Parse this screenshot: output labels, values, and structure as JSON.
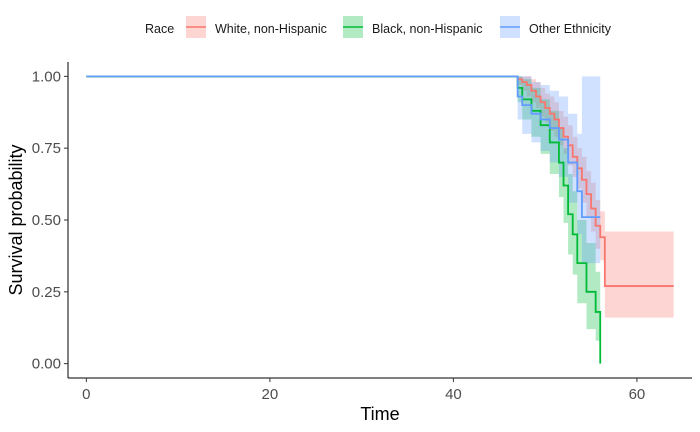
{
  "chart_data": {
    "type": "line",
    "subtype": "kaplan-meier-step",
    "xlabel": "Time",
    "ylabel": "Survival probability",
    "xlim": [
      -2,
      66
    ],
    "ylim": [
      -0.05,
      1.05
    ],
    "xticks": [
      0,
      20,
      40,
      60
    ],
    "yticks": [
      0.0,
      0.25,
      0.5,
      0.75,
      1.0
    ],
    "xtick_labels": [
      "0",
      "20",
      "40",
      "60"
    ],
    "ytick_labels": [
      "0.00",
      "0.25",
      "0.50",
      "0.75",
      "1.00"
    ],
    "grid": false,
    "legend": {
      "title": "Race",
      "position": "top",
      "entries": [
        "White, non-Hispanic",
        "Black, non-Hispanic",
        "Other Ethnicity"
      ]
    },
    "series": [
      {
        "name": "White, non-Hispanic",
        "color": "#F8766D",
        "fill": "#F8766D",
        "x": [
          0,
          47,
          47.5,
          48,
          48.5,
          49,
          49.5,
          50,
          50.5,
          51,
          51.5,
          52,
          52.5,
          53,
          53.5,
          54,
          54.5,
          55,
          55.5,
          56,
          56.5,
          64
        ],
        "y": [
          1.0,
          0.99,
          0.98,
          0.97,
          0.95,
          0.93,
          0.91,
          0.89,
          0.87,
          0.85,
          0.82,
          0.79,
          0.76,
          0.72,
          0.68,
          0.64,
          0.59,
          0.54,
          0.48,
          0.44,
          0.27,
          0.27
        ],
        "lower": [
          1.0,
          0.97,
          0.95,
          0.93,
          0.91,
          0.89,
          0.86,
          0.84,
          0.81,
          0.79,
          0.76,
          0.73,
          0.69,
          0.65,
          0.61,
          0.56,
          0.51,
          0.46,
          0.4,
          0.36,
          0.16,
          0.16
        ],
        "upper": [
          1.0,
          1.0,
          1.0,
          1.0,
          0.99,
          0.98,
          0.96,
          0.94,
          0.93,
          0.91,
          0.88,
          0.86,
          0.83,
          0.79,
          0.75,
          0.72,
          0.67,
          0.63,
          0.57,
          0.53,
          0.46,
          0.46
        ]
      },
      {
        "name": "Black, non-Hispanic",
        "color": "#00BA38",
        "fill": "#00BA38",
        "x": [
          0,
          47,
          47.5,
          48.5,
          49.5,
          50.5,
          51.5,
          52,
          52.5,
          53,
          53.5,
          54.5,
          55.5,
          56
        ],
        "y": [
          1.0,
          0.96,
          0.92,
          0.88,
          0.83,
          0.77,
          0.7,
          0.62,
          0.52,
          0.45,
          0.35,
          0.25,
          0.18,
          0.0
        ],
        "lower": [
          1.0,
          0.91,
          0.85,
          0.79,
          0.73,
          0.66,
          0.58,
          0.49,
          0.38,
          0.31,
          0.21,
          0.12,
          0.08,
          0.0
        ],
        "upper": [
          1.0,
          1.0,
          0.99,
          0.96,
          0.92,
          0.88,
          0.82,
          0.75,
          0.66,
          0.6,
          0.5,
          0.42,
          0.32,
          0.25
        ]
      },
      {
        "name": "Other Ethnicity",
        "color": "#619CFF",
        "fill": "#619CFF",
        "x": [
          0,
          47,
          47.5,
          48.5,
          49.5,
          50.5,
          51.5,
          52.5,
          53.5,
          54,
          56
        ],
        "y": [
          1.0,
          0.93,
          0.9,
          0.87,
          0.85,
          0.82,
          0.78,
          0.7,
          0.6,
          0.51,
          0.51
        ],
        "lower": [
          1.0,
          0.85,
          0.8,
          0.77,
          0.74,
          0.7,
          0.65,
          0.56,
          0.45,
          0.35,
          0.35
        ],
        "upper": [
          1.0,
          1.0,
          1.0,
          0.98,
          0.97,
          0.95,
          0.93,
          0.87,
          0.8,
          1.0,
          1.0
        ]
      }
    ]
  }
}
